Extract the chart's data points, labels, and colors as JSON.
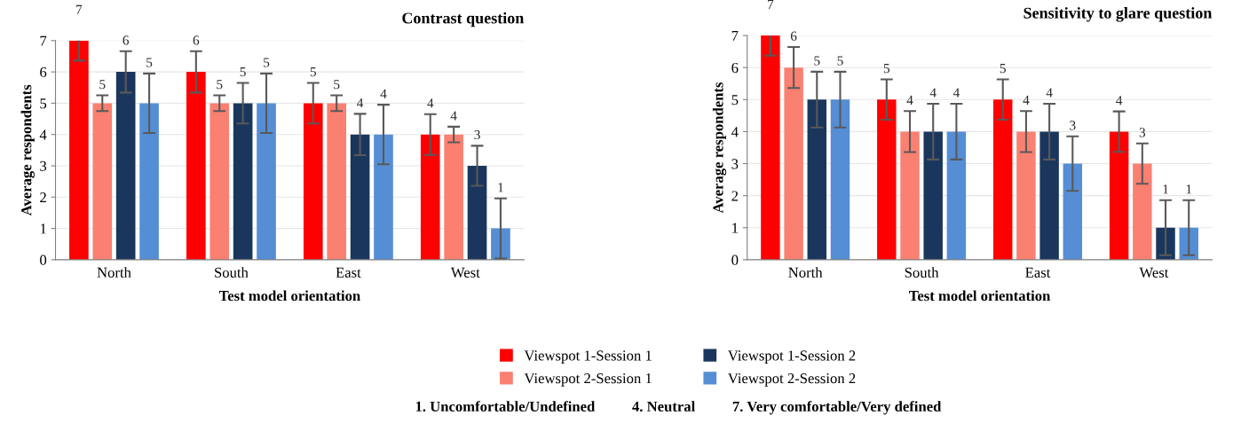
{
  "chart_data": [
    {
      "type": "bar",
      "title": "Contrast question",
      "xlabel": "Test model orientation",
      "ylabel": "Average respondents",
      "categories": [
        "North",
        "South",
        "East",
        "West"
      ],
      "series": [
        {
          "name": "Viewspot 1-Session 1",
          "color": "#ff0000",
          "values": [
            7,
            6,
            5,
            4
          ],
          "errors": [
            0.64,
            0.66,
            0.65,
            0.65
          ]
        },
        {
          "name": "Viewspot 2-Session 1",
          "color": "#fa8072",
          "values": [
            5,
            5,
            5,
            4
          ],
          "errors": [
            0.25,
            0.25,
            0.25,
            0.25
          ]
        },
        {
          "name": "Viewspot 1-Session 2",
          "color": "#1a365d",
          "values": [
            6,
            5,
            4,
            3
          ],
          "errors": [
            0.66,
            0.65,
            0.66,
            0.64
          ]
        },
        {
          "name": "Viewspot 2-Session 2",
          "color": "#558ed5",
          "values": [
            5,
            5,
            4,
            1
          ],
          "errors": [
            0.95,
            0.95,
            0.95,
            0.96
          ]
        }
      ],
      "ylim": [
        0,
        7
      ],
      "yticks": [
        0,
        1,
        2,
        3,
        4,
        5,
        6,
        7
      ],
      "grid": "y",
      "data_labels": true,
      "legend": "bottom",
      "annotations": [
        "1. Uncomfortable/Undefined          4. Neutral          7. Very comfortable/Very defined"
      ]
    },
    {
      "type": "bar",
      "title": "Sensitivity to glare question",
      "xlabel": "Test model orientation",
      "ylabel": "Average respondents",
      "categories": [
        "North",
        "South",
        "East",
        "West"
      ],
      "series": [
        {
          "color": "#ff0000",
          "values": [
            7,
            5,
            5,
            4
          ],
          "errors": [
            0.63,
            0.63,
            0.63,
            0.63
          ]
        },
        {
          "color": "#fa8072",
          "values": [
            6,
            4,
            4,
            3
          ],
          "errors": [
            0.64,
            0.64,
            0.64,
            0.63
          ]
        },
        {
          "color": "#1a365d",
          "values": [
            5,
            4,
            4,
            1
          ],
          "errors": [
            0.87,
            0.87,
            0.87,
            0.86
          ]
        },
        {
          "color": "#558ed5",
          "values": [
            5,
            4,
            3,
            1
          ],
          "errors": [
            0.87,
            0.87,
            0.85,
            0.86
          ]
        }
      ],
      "ylim": [
        0,
        7
      ],
      "yticks": [
        0,
        1,
        2,
        3,
        4,
        5,
        6,
        7
      ],
      "grid": "y",
      "data_labels": true
    }
  ]
}
